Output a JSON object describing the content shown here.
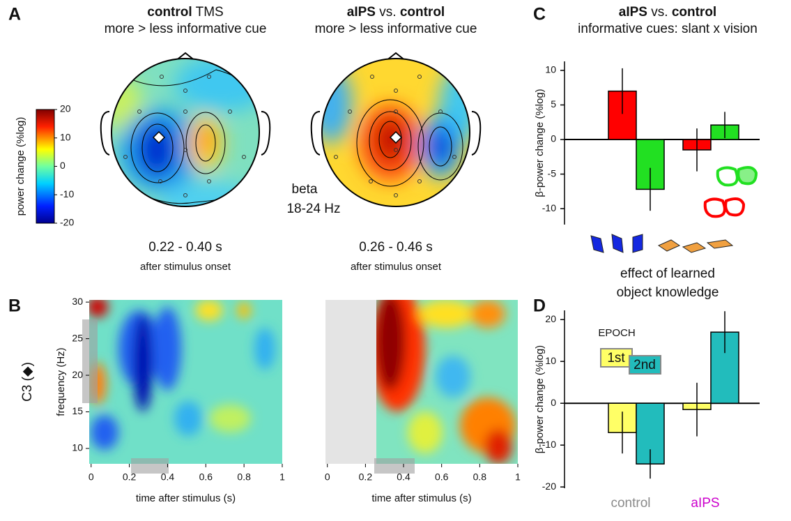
{
  "panel_labels": [
    "A",
    "B",
    "C",
    "D"
  ],
  "topomaps": [
    {
      "title": [
        "control",
        "TMS"
      ],
      "subtitle": "more > less informative cue",
      "window": "0.22 - 0.40 s",
      "window_note": "after stimulus onset"
    },
    {
      "title": [
        "aIPS",
        "vs.",
        "control"
      ],
      "subtitle": "more > less informative cue",
      "window": "0.26 - 0.46 s",
      "window_note": "after stimulus onset"
    }
  ],
  "band": [
    "beta",
    "18-24 Hz"
  ],
  "chart_data": [
    {
      "type": "colorbar",
      "label": "power change (%log)",
      "ylim": [
        -20,
        20
      ],
      "yticks": [
        20,
        10,
        0,
        -10,
        -20
      ]
    },
    {
      "type": "heatmap",
      "row_label": "C3 (◆)",
      "xlabel": "time after stimulus (s)",
      "ylabel": "frequency (Hz)",
      "xlim": [
        -0.01,
        1
      ],
      "ylim": [
        7.9,
        30.3
      ],
      "xticks": [
        0,
        0.2,
        0.4,
        0.6,
        0.8,
        1
      ],
      "yticks": [
        10,
        15,
        20,
        25,
        30
      ]
    },
    {
      "type": "heatmap",
      "xlabel": "time after stimulus (s)",
      "xlim": [
        -0.01,
        1
      ],
      "ylim": [
        7.9,
        30.3
      ],
      "xticks": [
        0,
        0.2,
        0.4,
        0.6,
        0.8,
        1
      ]
    },
    {
      "type": "bar",
      "title": [
        "aIPS",
        "vs.",
        "control"
      ],
      "subtitle": "informative cues: slant x vision",
      "ylabel": "β-power change (%log)",
      "categories": [
        null,
        null
      ],
      "series": [
        {
          "color": "#ff0000",
          "values": [
            7,
            -1.5
          ],
          "errors": [
            3.3,
            3.1
          ]
        },
        {
          "color": "#22e022",
          "values": [
            -7.2,
            2.1
          ],
          "errors": [
            3.1,
            1.9
          ]
        }
      ],
      "ylim": [
        -12.3,
        11.3
      ],
      "yticks": [
        -10,
        -5,
        0,
        5,
        10
      ],
      "annotation": [
        "effect of learned",
        "object knowledge"
      ]
    },
    {
      "type": "bar",
      "ylabel": "β-power change (%log)",
      "categories": [
        "control",
        "aIPS"
      ],
      "category_colors": [
        "#8a8a8a",
        "#cc00cc"
      ],
      "legend_title": "EPOCH",
      "series": [
        {
          "name": "1st",
          "color": "#ffff66",
          "values": [
            -7,
            -1.5
          ],
          "errors": [
            5,
            6.4
          ]
        },
        {
          "name": "2nd",
          "color": "#22bcbc",
          "values": [
            -14.5,
            17
          ],
          "errors": [
            3.5,
            5
          ]
        }
      ],
      "ylim": [
        -20.3,
        22.2
      ],
      "yticks": [
        -20,
        -10,
        0,
        10,
        20
      ]
    }
  ]
}
